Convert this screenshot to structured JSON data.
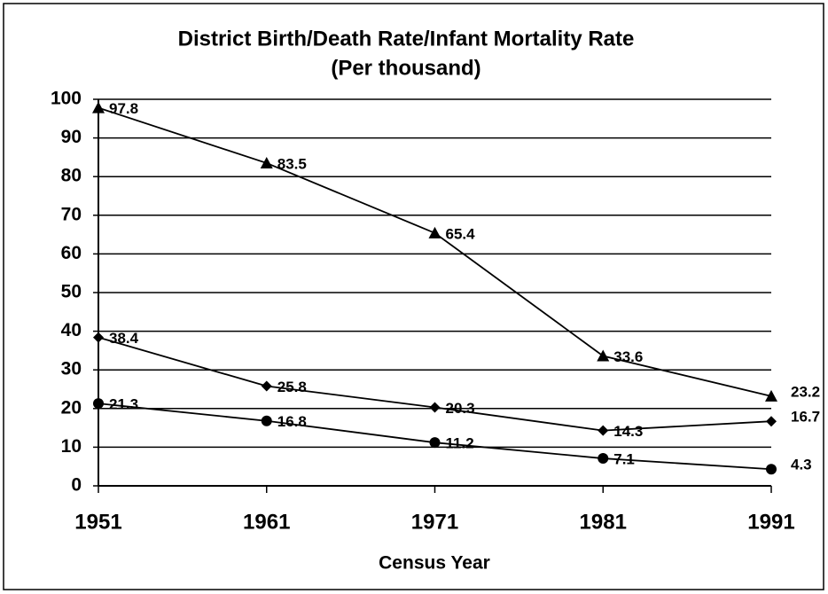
{
  "chart_data": {
    "type": "line",
    "title": "District Birth/Death Rate/Infant Mortality Rate",
    "subtitle": "(Per thousand)",
    "x_label": "Census Year",
    "categories": [
      "1951",
      "1961",
      "1971",
      "1981",
      "1991"
    ],
    "series": [
      {
        "color": "#000000",
        "marker": "triangle",
        "values": [
          97.8,
          83.5,
          65.4,
          33.6,
          23.2
        ]
      },
      {
        "color": "#000000",
        "marker": "diamond",
        "values": [
          38.4,
          25.8,
          20.3,
          14.3,
          16.7
        ]
      },
      {
        "color": "#000000",
        "marker": "circle",
        "values": [
          21.3,
          16.8,
          11.2,
          7.1,
          4.3
        ]
      }
    ],
    "ylim": [
      0,
      100
    ],
    "yticks": [
      0,
      10,
      20,
      30,
      40,
      50,
      60,
      70,
      80,
      90,
      100
    ],
    "grid": true
  }
}
